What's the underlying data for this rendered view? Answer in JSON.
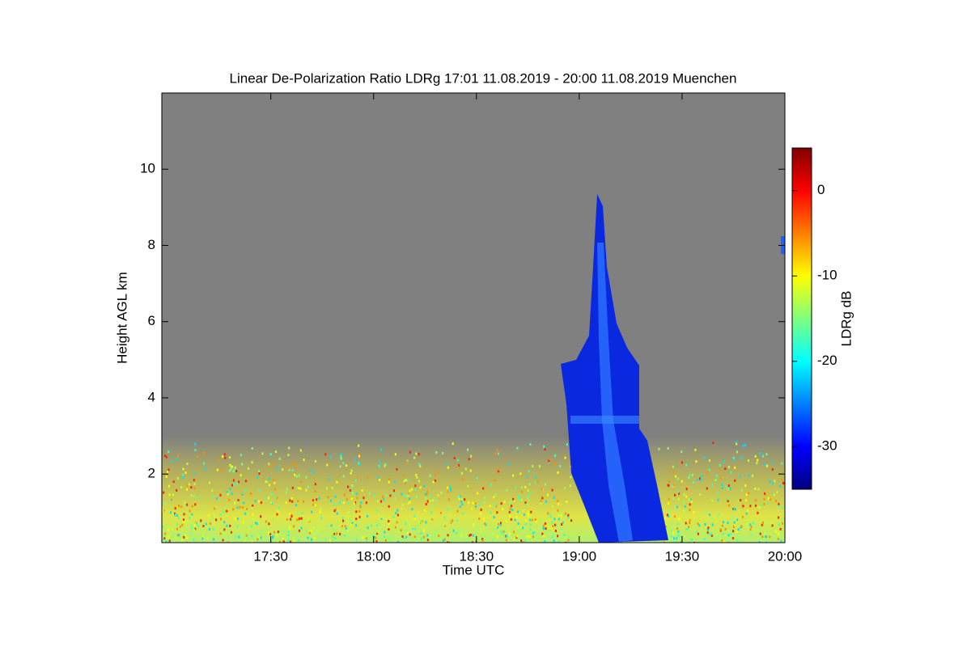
{
  "chart_data": {
    "type": "heatmap",
    "title": "Linear De-Polarization Ratio LDRg   17:01 11.08.2019 - 20:00 11.08.2019 Muenchen",
    "x_label": "Time UTC",
    "y_label": "Height AGL km",
    "xlim": [
      16.97,
      20
    ],
    "xticks": [
      {
        "value": 17.5,
        "label": "17:30"
      },
      {
        "value": 18,
        "label": "18:00"
      },
      {
        "value": 18.5,
        "label": "18:30"
      },
      {
        "value": 19,
        "label": "19:00"
      },
      {
        "value": 19.5,
        "label": "19:30"
      },
      {
        "value": 20,
        "label": "20:00"
      }
    ],
    "ylim": [
      0.2,
      12
    ],
    "yticks": [
      2,
      4,
      6,
      8,
      10
    ],
    "background_color": "#808080",
    "colorbar": {
      "label": "LDRg dB",
      "lim": [
        -35,
        5
      ],
      "ticks": [
        0,
        -10,
        -20,
        -30
      ],
      "colormap": [
        "#00007f",
        "#0000ff",
        "#007fff",
        "#00ffff",
        "#7fff7f",
        "#ffff00",
        "#ff7f00",
        "#ff0000",
        "#7f0000"
      ]
    }
  }
}
